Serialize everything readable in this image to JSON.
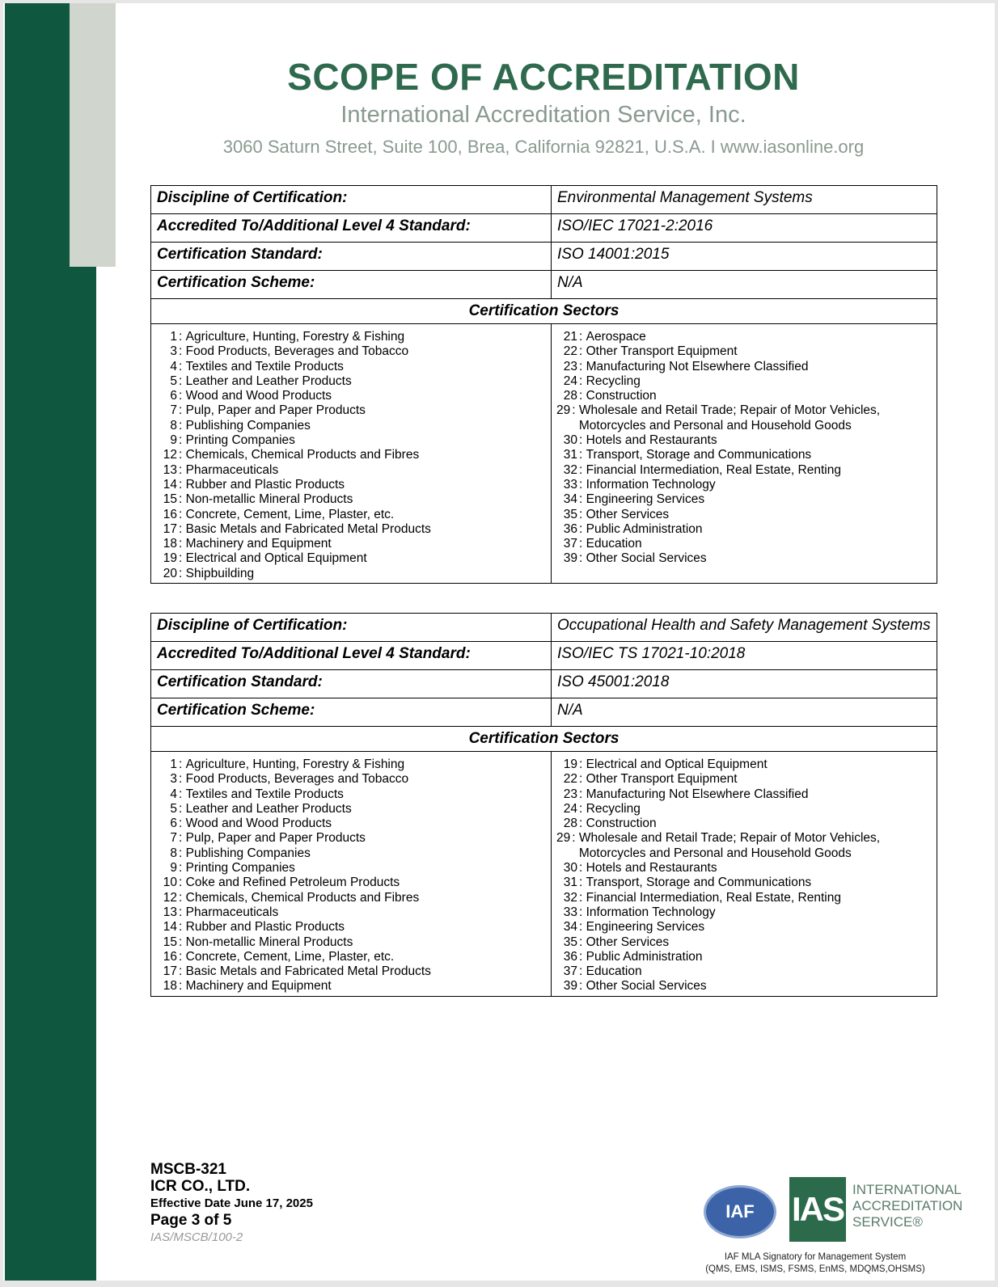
{
  "header": {
    "title": "SCOPE OF ACCREDITATION",
    "org": "International Accreditation Service, Inc.",
    "address": "3060 Saturn Street, Suite 100, Brea, California 92821, U.S.A.  I  www.iasonline.org"
  },
  "labels": {
    "discipline": "Discipline of Certification:",
    "accredited": "Accredited To/Additional Level 4 Standard:",
    "standard": "Certification Standard:",
    "scheme": "Certification Scheme:",
    "sectors": "Certification Sectors"
  },
  "tables": [
    {
      "discipline": "Environmental Management Systems",
      "accredited": "ISO/IEC 17021-2:2016",
      "standard": "ISO 14001:2015",
      "scheme": "N/A",
      "left": [
        [
          "1",
          "Agriculture, Hunting, Forestry & Fishing"
        ],
        [
          "3",
          "Food Products, Beverages and Tobacco"
        ],
        [
          "4",
          "Textiles and Textile Products"
        ],
        [
          "5",
          "Leather and Leather Products"
        ],
        [
          "6",
          "Wood and Wood Products"
        ],
        [
          "7",
          "Pulp, Paper and Paper Products"
        ],
        [
          "8",
          "Publishing Companies"
        ],
        [
          "9",
          "Printing Companies"
        ],
        [
          "12",
          "Chemicals, Chemical Products and Fibres"
        ],
        [
          "13",
          "Pharmaceuticals"
        ],
        [
          "14",
          "Rubber and Plastic Products"
        ],
        [
          "15",
          "Non-metallic Mineral Products"
        ],
        [
          "16",
          "Concrete, Cement, Lime, Plaster, etc."
        ],
        [
          "17",
          "Basic Metals and Fabricated Metal Products"
        ],
        [
          "18",
          "Machinery and Equipment"
        ],
        [
          "19",
          "Electrical and Optical Equipment"
        ],
        [
          "20",
          "Shipbuilding"
        ]
      ],
      "right": [
        [
          "21",
          "Aerospace"
        ],
        [
          "22",
          "Other Transport Equipment"
        ],
        [
          "23",
          "Manufacturing Not Elsewhere Classified"
        ],
        [
          "24",
          "Recycling"
        ],
        [
          "28",
          "Construction"
        ],
        [
          "29",
          "Wholesale and Retail Trade; Repair of Motor Vehicles, Motorcycles and Personal and Household Goods"
        ],
        [
          "30",
          "Hotels and Restaurants"
        ],
        [
          "31",
          "Transport, Storage and Communications"
        ],
        [
          "32",
          "Financial Intermediation, Real Estate, Renting"
        ],
        [
          "33",
          "Information Technology"
        ],
        [
          "34",
          "Engineering Services"
        ],
        [
          "35",
          "Other Services"
        ],
        [
          "36",
          "Public Administration"
        ],
        [
          "37",
          "Education"
        ],
        [
          "39",
          "Other Social Services"
        ]
      ]
    },
    {
      "discipline": "Occupational Health and Safety Management Systems",
      "accredited": "ISO/IEC TS 17021-10:2018",
      "standard": "ISO 45001:2018",
      "scheme": "N/A",
      "left": [
        [
          "1",
          "Agriculture, Hunting, Forestry & Fishing"
        ],
        [
          "3",
          "Food Products, Beverages and Tobacco"
        ],
        [
          "4",
          "Textiles and Textile Products"
        ],
        [
          "5",
          "Leather and Leather Products"
        ],
        [
          "6",
          "Wood and Wood Products"
        ],
        [
          "7",
          "Pulp, Paper and Paper Products"
        ],
        [
          "8",
          "Publishing Companies"
        ],
        [
          "9",
          "Printing Companies"
        ],
        [
          "10",
          "Coke and Refined Petroleum Products"
        ],
        [
          "12",
          "Chemicals, Chemical Products and Fibres"
        ],
        [
          "13",
          "Pharmaceuticals"
        ],
        [
          "14",
          "Rubber and Plastic Products"
        ],
        [
          "15",
          "Non-metallic Mineral Products"
        ],
        [
          "16",
          "Concrete, Cement, Lime, Plaster, etc."
        ],
        [
          "17",
          "Basic Metals and Fabricated Metal Products"
        ],
        [
          "18",
          "Machinery and Equipment"
        ]
      ],
      "right": [
        [
          "19",
          "Electrical and Optical Equipment"
        ],
        [
          "22",
          "Other Transport Equipment"
        ],
        [
          "23",
          "Manufacturing Not Elsewhere Classified"
        ],
        [
          "24",
          "Recycling"
        ],
        [
          "28",
          "Construction"
        ],
        [
          "29",
          "Wholesale and Retail Trade; Repair of Motor Vehicles, Motorcycles and Personal and Household Goods"
        ],
        [
          "30",
          "Hotels and Restaurants"
        ],
        [
          "31",
          "Transport, Storage and Communications"
        ],
        [
          "32",
          "Financial Intermediation, Real Estate, Renting"
        ],
        [
          "33",
          "Information Technology"
        ],
        [
          "34",
          "Engineering Services"
        ],
        [
          "35",
          "Other Services"
        ],
        [
          "36",
          "Public Administration"
        ],
        [
          "37",
          "Education"
        ],
        [
          "39",
          "Other Social Services"
        ]
      ]
    }
  ],
  "footer": {
    "code": "MSCB-321",
    "company": "ICR CO., LTD.",
    "effective": "Effective Date June 17, 2025",
    "page": "Page 3 of 5",
    "form": "IAS/MSCB/100-2"
  },
  "logos": {
    "iaf": "IAF",
    "ias": "IAS",
    "ias_text": [
      "INTERNATIONAL",
      "ACCREDITATION",
      "SERVICE®"
    ],
    "caption1": "IAF MLA Signatory for Management System",
    "caption2": "(QMS, EMS, ISMS, FSMS, EnMS, MDQMS,OHSMS)"
  },
  "colors": {
    "brand_green": "#10573f",
    "title_green": "#2f6a4f",
    "side_grey": "#d0d5cd"
  }
}
